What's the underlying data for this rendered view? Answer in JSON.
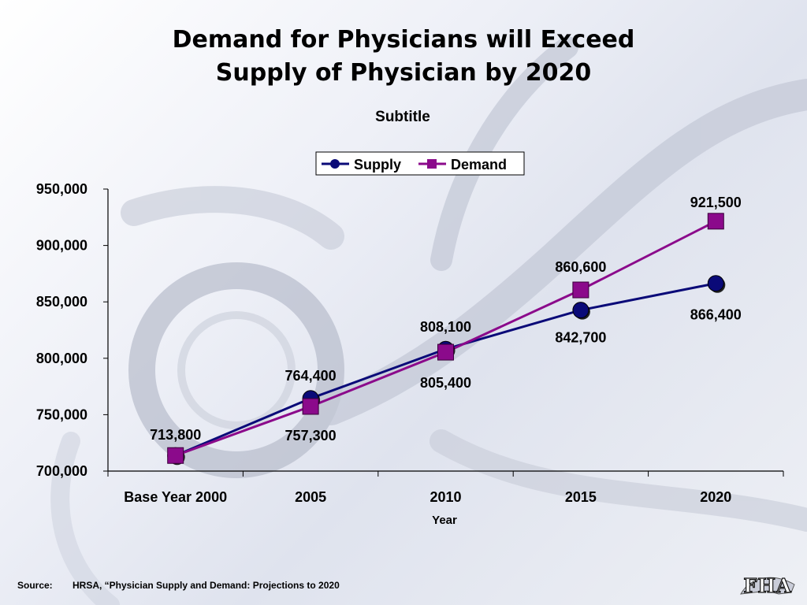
{
  "slide": {
    "title_line1": "Demand for Physicians will Exceed",
    "title_line2": "Supply of Physician by 2020"
  },
  "chart_data": {
    "type": "line",
    "subtitle": "Subtitle",
    "xlabel": "Year",
    "ylabel": "",
    "categories": [
      "Base Year 2000",
      "2005",
      "2010",
      "2015",
      "2020"
    ],
    "ylim": [
      700000,
      950000
    ],
    "yticks": [
      "700,000",
      "750,000",
      "800,000",
      "850,000",
      "900,000",
      "950,000"
    ],
    "ytick_values": [
      700000,
      750000,
      800000,
      850000,
      900000,
      950000
    ],
    "legend_position": "top-center",
    "grid": false,
    "series": [
      {
        "name": "Supply",
        "color": "#0a0a78",
        "marker": "circle",
        "values": [
          713800,
          764400,
          808100,
          842700,
          866400
        ],
        "labels": [
          "713,800",
          "764,400",
          "808,100",
          "842,700",
          "866,400"
        ]
      },
      {
        "name": "Demand",
        "color": "#8b0a8b",
        "marker": "square",
        "values": [
          713800,
          757300,
          805400,
          860600,
          921500
        ],
        "labels": [
          "",
          "757,300",
          "805,400",
          "860,600",
          "921,500"
        ]
      }
    ]
  },
  "footer": {
    "source_label": "Source:",
    "source_text": "HRSA, “Physician Supply and Demand:  Projections to 2020"
  },
  "logo": {
    "text": "FHA"
  }
}
